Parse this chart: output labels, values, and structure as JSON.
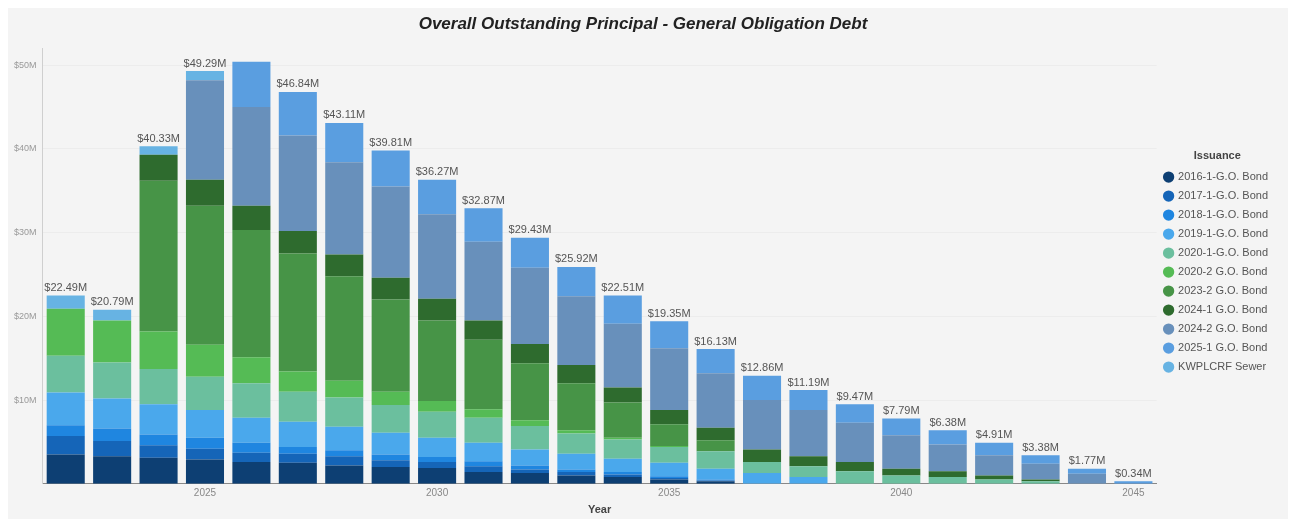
{
  "chart_data": {
    "type": "bar",
    "title": "Overall Outstanding Principal - General Obligation Debt",
    "xlabel": "Year",
    "legend_title": "Issuance",
    "stacked": true,
    "legend": "right",
    "grid": "y",
    "categories": [
      null,
      null,
      null,
      "2025",
      null,
      null,
      null,
      null,
      "2030",
      null,
      null,
      null,
      null,
      "2035",
      null,
      null,
      null,
      null,
      "2040",
      null,
      null,
      null,
      null,
      "2045"
    ],
    "ylim": [
      0,
      52
    ],
    "yticks": [
      {
        "value": 10,
        "label": "$10M"
      },
      {
        "value": 20,
        "label": "$20M"
      },
      {
        "value": 30,
        "label": "$30M"
      },
      {
        "value": 40,
        "label": "$40M"
      },
      {
        "value": 50,
        "label": "$50M"
      }
    ],
    "series": [
      {
        "name": "2016-1-G.O. Bond",
        "color": "#0d3f73",
        "values": [
          3.5,
          3.3,
          3.1,
          2.9,
          2.6,
          2.5,
          2.2,
          2.0,
          1.9,
          1.4,
          1.3,
          1.0,
          0.8,
          0.5,
          0.3,
          null,
          null,
          null,
          null,
          null,
          null,
          null,
          null,
          null
        ]
      },
      {
        "name": "2017-1-G.O. Bond",
        "color": "#1565b8",
        "values": [
          2.2,
          1.8,
          1.5,
          1.3,
          1.1,
          1.1,
          1.1,
          0.8,
          0.7,
          0.7,
          0.4,
          0.4,
          0.3,
          0.2,
          0.1,
          null,
          null,
          null,
          null,
          null,
          null,
          null,
          null,
          null
        ]
      },
      {
        "name": "2018-1-G.O. Bond",
        "color": "#1f86e0",
        "values": [
          1.3,
          1.5,
          1.3,
          1.3,
          1.2,
          0.8,
          0.7,
          0.7,
          0.6,
          0.6,
          0.5,
          0.3,
          0.3,
          0.2,
          0.1,
          null,
          null,
          null,
          null,
          null,
          null,
          null,
          null,
          null
        ]
      },
      {
        "name": "2019-1-G.O. Bond",
        "color": "#4aa8ec",
        "values": [
          3.9,
          3.6,
          3.6,
          3.3,
          3.0,
          3.0,
          2.8,
          2.6,
          2.3,
          2.2,
          1.9,
          1.9,
          1.6,
          1.6,
          1.3,
          1.3,
          0.8,
          null,
          null,
          null,
          null,
          null,
          null,
          null
        ]
      },
      {
        "name": "2020-1-G.O. Bond",
        "color": "#6bbf9e",
        "values": [
          4.4,
          4.3,
          4.2,
          4.0,
          4.1,
          3.6,
          3.5,
          3.3,
          3.1,
          3.0,
          2.8,
          2.4,
          2.3,
          1.9,
          2.1,
          1.3,
          1.3,
          1.5,
          1.0,
          0.8,
          0.5,
          0.3,
          null,
          null
        ]
      },
      {
        "name": "2020-2 G.O. Bond",
        "color": "#55bb55",
        "values": [
          5.6,
          5.0,
          4.5,
          3.8,
          3.1,
          2.4,
          2.0,
          1.6,
          1.3,
          1.0,
          0.7,
          0.4,
          0.2,
          0.1,
          null,
          null,
          null,
          null,
          null,
          null,
          null,
          null,
          null,
          null
        ]
      },
      {
        "name": "2023-2 G.O. Bond",
        "color": "#479447",
        "values": [
          null,
          null,
          18.0,
          16.6,
          15.2,
          14.1,
          12.5,
          11.0,
          9.6,
          8.3,
          6.8,
          5.6,
          4.2,
          2.6,
          1.3,
          null,
          null,
          null,
          null,
          null,
          null,
          null,
          null,
          null
        ]
      },
      {
        "name": "2024-1 G.O. Bond",
        "color": "#2e6b2e",
        "values": [
          null,
          null,
          3.1,
          3.1,
          2.9,
          2.7,
          2.6,
          2.6,
          2.6,
          2.3,
          2.3,
          2.2,
          1.8,
          1.7,
          1.5,
          1.5,
          1.2,
          1.1,
          0.8,
          0.7,
          0.5,
          0.2,
          null,
          null
        ]
      },
      {
        "name": "2024-2 G.O. Bond",
        "color": "#6890bb",
        "values": [
          null,
          null,
          null,
          11.9,
          11.8,
          11.4,
          11.0,
          10.9,
          10.1,
          9.4,
          9.1,
          8.2,
          7.6,
          7.4,
          6.5,
          5.9,
          5.5,
          4.7,
          4.0,
          3.2,
          2.4,
          1.9,
          1.2,
          null
        ]
      },
      {
        "name": "2025-1 G.O. Bond",
        "color": "#5a9ee0",
        "values": [
          null,
          null,
          null,
          null,
          5.4,
          5.2,
          4.7,
          4.3,
          4.1,
          4.0,
          3.6,
          3.5,
          3.4,
          3.2,
          2.9,
          2.9,
          2.4,
          2.2,
          2.0,
          1.7,
          1.5,
          1.0,
          0.6,
          0.3
        ]
      },
      {
        "name": "KWPLCRF Sewer",
        "color": "#67b3e3",
        "values": [
          1.6,
          1.3,
          1.0,
          1.1,
          null,
          null,
          null,
          null,
          null,
          null,
          null,
          null,
          null,
          null,
          null,
          null,
          null,
          null,
          null,
          null,
          null,
          null,
          null,
          null
        ]
      }
    ],
    "totals": [
      "$22.49M",
      "$20.79M",
      "$40.33M",
      "$49.29M",
      null,
      "$46.84M",
      "$43.11M",
      "$39.81M",
      "$36.27M",
      "$32.87M",
      "$29.43M",
      "$25.92M",
      "$22.51M",
      "$19.35M",
      "$16.13M",
      "$12.86M",
      "$11.19M",
      "$9.47M",
      "$7.79M",
      "$6.38M",
      "$4.91M",
      "$3.38M",
      "$1.77M",
      "$0.34M"
    ]
  }
}
